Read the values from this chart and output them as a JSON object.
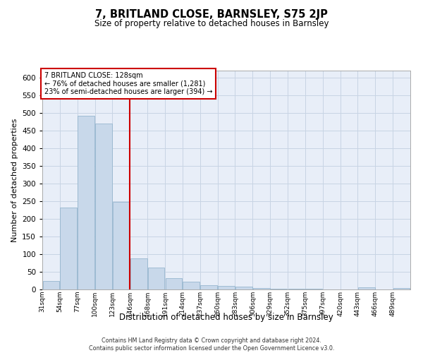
{
  "title": "7, BRITLAND CLOSE, BARNSLEY, S75 2JP",
  "subtitle": "Size of property relative to detached houses in Barnsley",
  "xlabel": "Distribution of detached houses by size in Barnsley",
  "ylabel": "Number of detached properties",
  "footnote": "Contains HM Land Registry data © Crown copyright and database right 2024.\nContains public sector information licensed under the Open Government Licence v3.0.",
  "property_label": "7 BRITLAND CLOSE: 128sqm",
  "annotation_line1": "← 76% of detached houses are smaller (1,281)",
  "annotation_line2": "23% of semi-detached houses are larger (394) →",
  "property_size_sqm": 128,
  "bar_color": "#c8d8ea",
  "bar_edge_color": "#8aaec8",
  "red_line_color": "#cc0000",
  "annotation_box_color": "#ffffff",
  "annotation_box_edge": "#cc0000",
  "grid_color": "#c8d4e4",
  "background_color": "#e8eef8",
  "bins": [
    31,
    54,
    77,
    100,
    123,
    146,
    168,
    191,
    214,
    237,
    260,
    283,
    306,
    329,
    352,
    375,
    397,
    420,
    443,
    466,
    489
  ],
  "bin_labels": [
    "31sqm",
    "54sqm",
    "77sqm",
    "100sqm",
    "123sqm",
    "146sqm",
    "168sqm",
    "191sqm",
    "214sqm",
    "237sqm",
    "260sqm",
    "283sqm",
    "306sqm",
    "329sqm",
    "352sqm",
    "375sqm",
    "397sqm",
    "420sqm",
    "443sqm",
    "466sqm",
    "489sqm"
  ],
  "bar_heights": [
    25,
    232,
    492,
    470,
    248,
    88,
    63,
    32,
    22,
    13,
    10,
    8,
    4,
    3,
    2,
    2,
    1,
    1,
    6,
    1,
    4
  ],
  "ylim": [
    0,
    620
  ],
  "yticks": [
    0,
    50,
    100,
    150,
    200,
    250,
    300,
    350,
    400,
    450,
    500,
    550,
    600
  ]
}
